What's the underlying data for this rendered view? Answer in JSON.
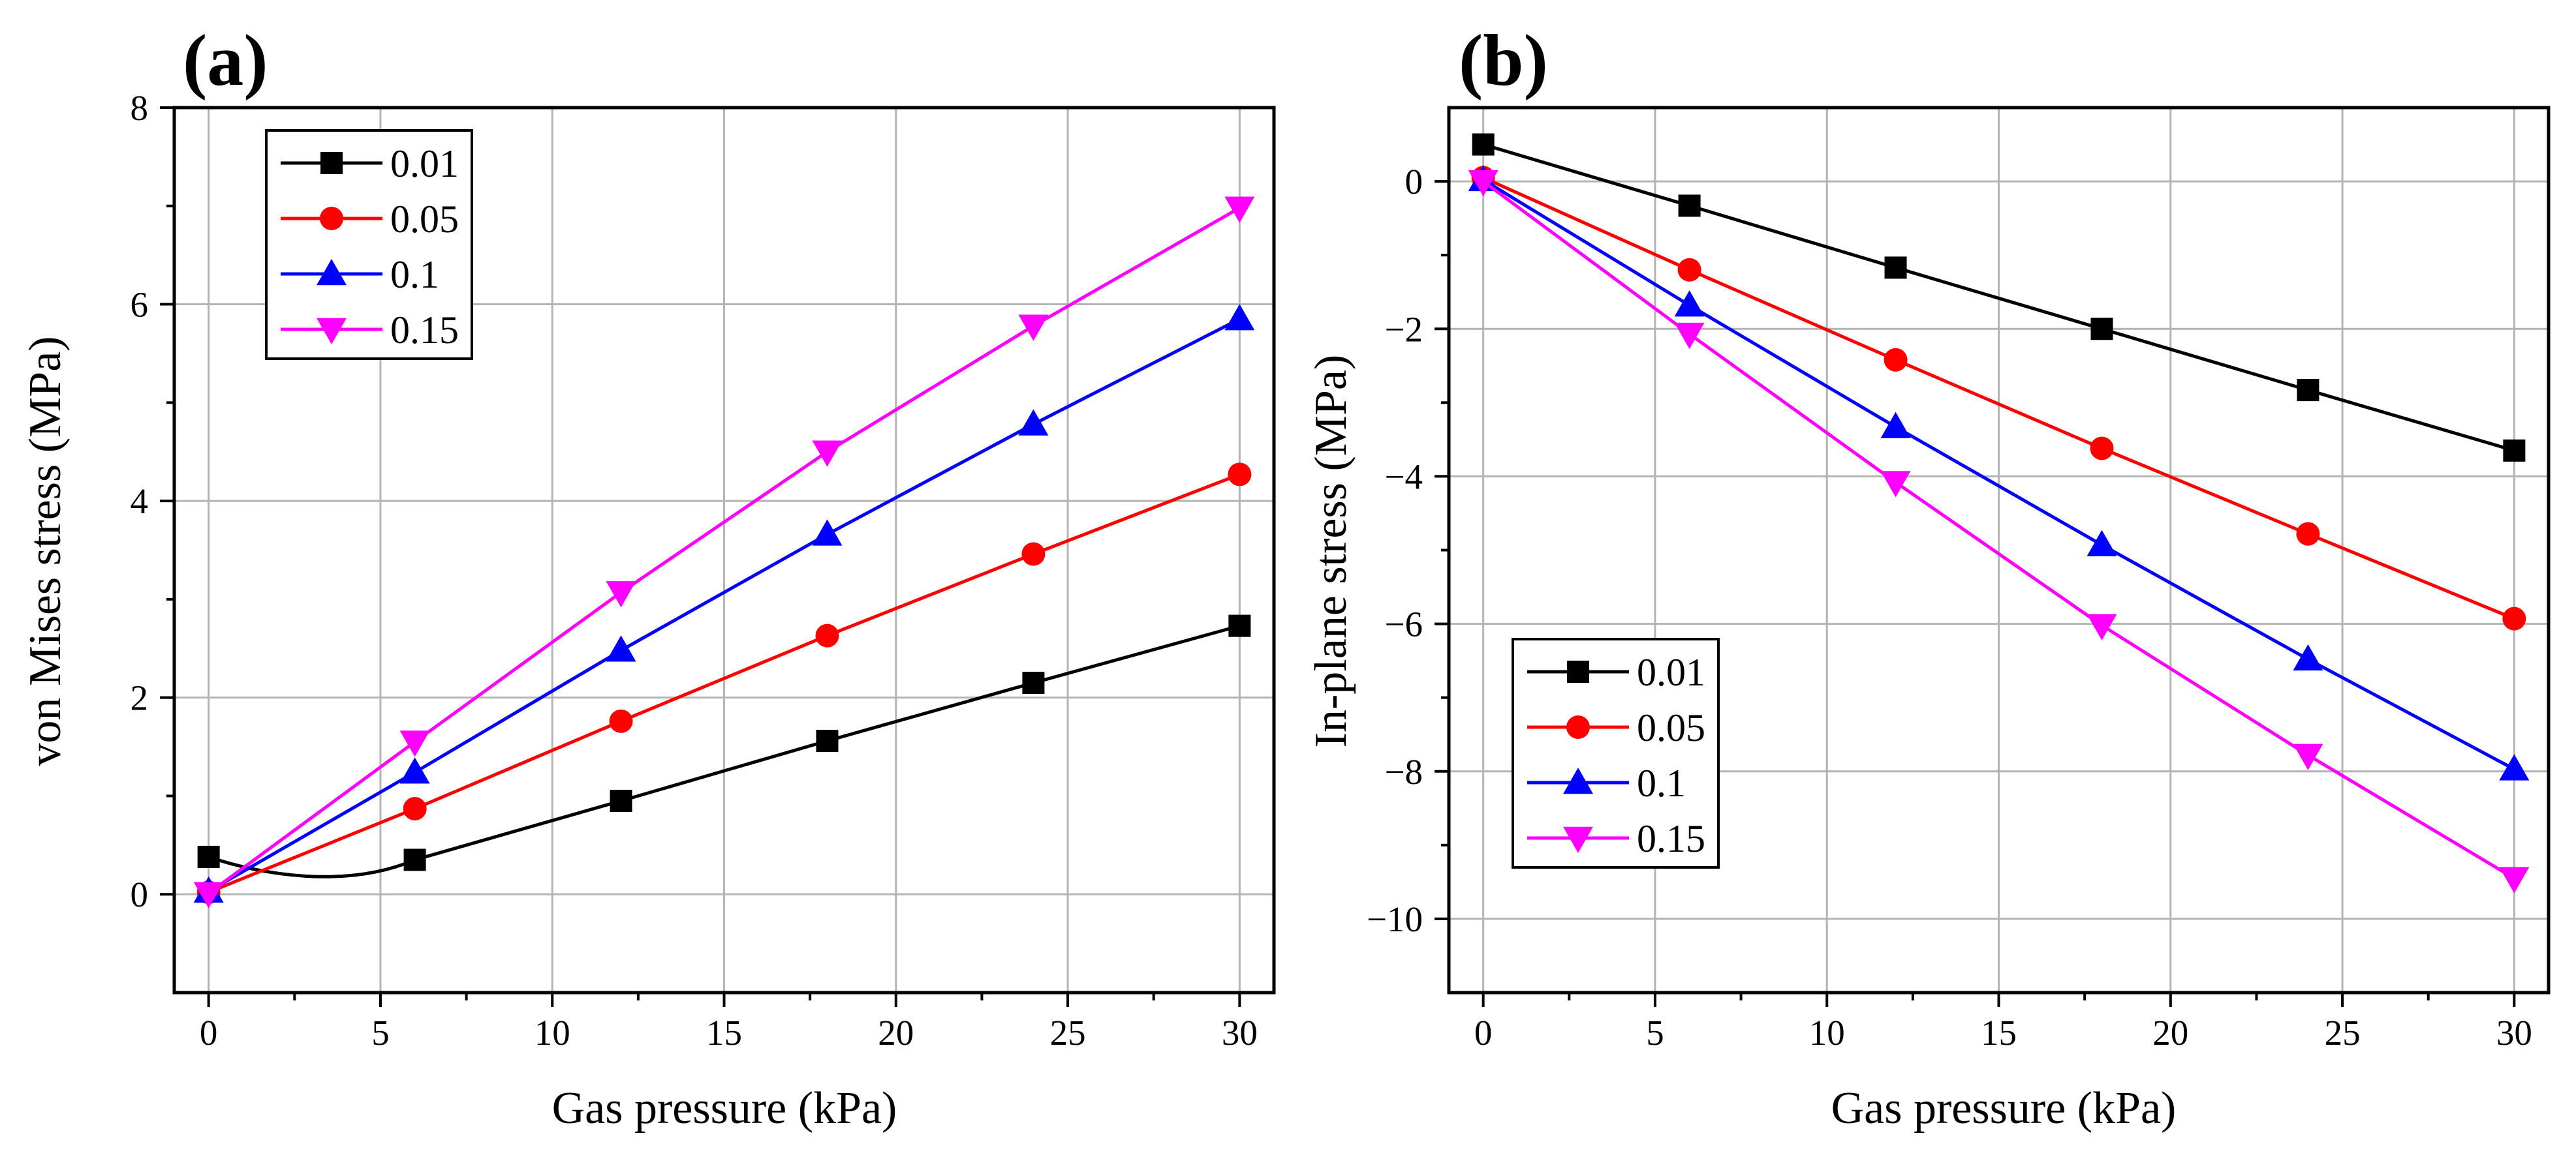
{
  "chart_data": [
    {
      "type": "line",
      "panel_label": "(a)",
      "xlabel": "Gas pressure (kPa)",
      "ylabel": "von Mises stress (MPa)",
      "xlim": [
        -1,
        31
      ],
      "ylim": [
        -1,
        8
      ],
      "xticks": [
        0,
        5,
        10,
        15,
        20,
        25,
        30
      ],
      "xtick_labels": [
        "0",
        "5",
        "10",
        "15",
        "20",
        "25",
        "30"
      ],
      "yticks": [
        0,
        2,
        4,
        6,
        8
      ],
      "ytick_labels": [
        "0",
        "2",
        "4",
        "6",
        "8"
      ],
      "grid": true,
      "legend_position": "top-left",
      "x": [
        0,
        6,
        12,
        18,
        24,
        30
      ],
      "series": [
        {
          "name": "0.01",
          "color": "#000000",
          "marker": "square",
          "values": [
            0.38,
            0.35,
            0.95,
            1.56,
            2.15,
            2.73
          ],
          "smooth_dip": true
        },
        {
          "name": "0.05",
          "color": "#ff0000",
          "marker": "circle",
          "values": [
            0.02,
            0.87,
            1.76,
            2.63,
            3.46,
            4.27
          ]
        },
        {
          "name": "0.1",
          "color": "#0000ff",
          "marker": "triangle-up",
          "values": [
            0.03,
            1.24,
            2.48,
            3.66,
            4.78,
            5.85
          ]
        },
        {
          "name": "0.15",
          "color": "#ff00ff",
          "marker": "triangle-down",
          "values": [
            0.01,
            1.55,
            3.07,
            4.5,
            5.78,
            6.98
          ]
        }
      ]
    },
    {
      "type": "line",
      "panel_label": "(b)",
      "xlabel": "Gas pressure (kPa)",
      "ylabel": "In-plane stress (MPa)",
      "xlim": [
        -1,
        31
      ],
      "ylim": [
        -11,
        1
      ],
      "xticks": [
        0,
        5,
        10,
        15,
        20,
        25,
        30
      ],
      "xtick_labels": [
        "0",
        "5",
        "10",
        "15",
        "20",
        "25",
        "30"
      ],
      "yticks": [
        0,
        -2,
        -4,
        -6,
        -8,
        -10
      ],
      "ytick_labels": [
        "0",
        "−2",
        "−4",
        "−6",
        "−8",
        "−10"
      ],
      "grid": true,
      "legend_position": "bottom-left",
      "x": [
        0,
        6,
        12,
        18,
        24,
        30
      ],
      "series": [
        {
          "name": "0.01",
          "color": "#000000",
          "marker": "square",
          "values": [
            0.5,
            -0.33,
            -1.17,
            -2.0,
            -2.83,
            -3.65
          ]
        },
        {
          "name": "0.05",
          "color": "#ff0000",
          "marker": "circle",
          "values": [
            0.05,
            -1.2,
            -2.42,
            -3.62,
            -4.78,
            -5.93
          ]
        },
        {
          "name": "0.1",
          "color": "#0000ff",
          "marker": "triangle-up",
          "values": [
            0.02,
            -1.68,
            -3.33,
            -4.93,
            -6.48,
            -7.97
          ]
        },
        {
          "name": "0.15",
          "color": "#ff00ff",
          "marker": "triangle-down",
          "values": [
            0.0,
            -2.07,
            -4.08,
            -6.02,
            -7.78,
            -9.45
          ]
        }
      ]
    }
  ]
}
